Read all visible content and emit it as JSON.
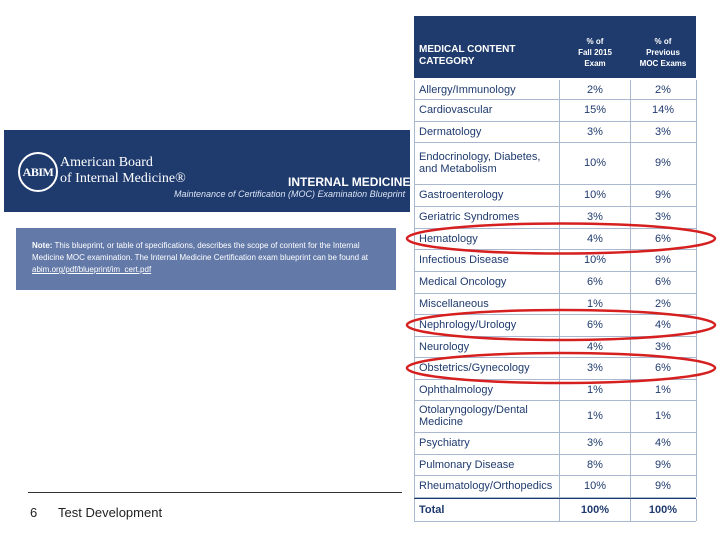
{
  "banner": {
    "logo_text": "ABIM",
    "org_line1": "American Board",
    "org_line2": "of Internal Medicine®",
    "title": "INTERNAL MEDICINE",
    "subtitle": "Maintenance of Certification (MOC) Examination Blueprint"
  },
  "note": {
    "label": "Note:",
    "text": "This blueprint, or table of specifications, describes the scope of content for the Internal Medicine MOC examination. The Internal Medicine Certification exam blueprint can be found at",
    "link": "abim.org/pdf/blueprint/im_cert.pdf"
  },
  "footer": {
    "page": "6",
    "title": "Test Development"
  },
  "table": {
    "headers": {
      "category": [
        "MEDICAL CONTENT",
        "CATEGORY"
      ],
      "col1": [
        "% of",
        "Fall 2015",
        "Exam"
      ],
      "col2": [
        "% of",
        "Previous",
        "MOC Exams"
      ]
    },
    "rows": [
      {
        "category": "Allergy/Immunology",
        "fall2015": "2%",
        "previous": "2%"
      },
      {
        "category": "Cardiovascular",
        "fall2015": "15%",
        "previous": "14%"
      },
      {
        "category": "Dermatology",
        "fall2015": "3%",
        "previous": "3%"
      },
      {
        "category": "Endocrinology, Diabetes, and Metabolism",
        "fall2015": "10%",
        "previous": "9%"
      },
      {
        "category": "Gastroenterology",
        "fall2015": "10%",
        "previous": "9%"
      },
      {
        "category": "Geriatric Syndromes",
        "fall2015": "3%",
        "previous": "3%"
      },
      {
        "category": "Hematology",
        "fall2015": "4%",
        "previous": "6%"
      },
      {
        "category": "Infectious Disease",
        "fall2015": "10%",
        "previous": "9%"
      },
      {
        "category": "Medical Oncology",
        "fall2015": "6%",
        "previous": "6%"
      },
      {
        "category": "Miscellaneous",
        "fall2015": "1%",
        "previous": "2%"
      },
      {
        "category": "Nephrology/Urology",
        "fall2015": "6%",
        "previous": "4%"
      },
      {
        "category": "Neurology",
        "fall2015": "4%",
        "previous": "3%"
      },
      {
        "category": "Obstetrics/Gynecology",
        "fall2015": "3%",
        "previous": "6%"
      },
      {
        "category": "Ophthalmology",
        "fall2015": "1%",
        "previous": "1%"
      },
      {
        "category": "Otolaryngology/Dental Medicine",
        "fall2015": "1%",
        "previous": "1%"
      },
      {
        "category": "Psychiatry",
        "fall2015": "3%",
        "previous": "4%"
      },
      {
        "category": "Pulmonary Disease",
        "fall2015": "8%",
        "previous": "9%"
      },
      {
        "category": "Rheumatology/Orthopedics",
        "fall2015": "10%",
        "previous": "9%"
      }
    ],
    "total": {
      "category": "Total",
      "fall2015": "100%",
      "previous": "100%"
    },
    "highlighted": [
      "Hematology",
      "Nephrology/Urology",
      "Obstetrics/Gynecology"
    ],
    "highlight_color": "#d62020"
  }
}
